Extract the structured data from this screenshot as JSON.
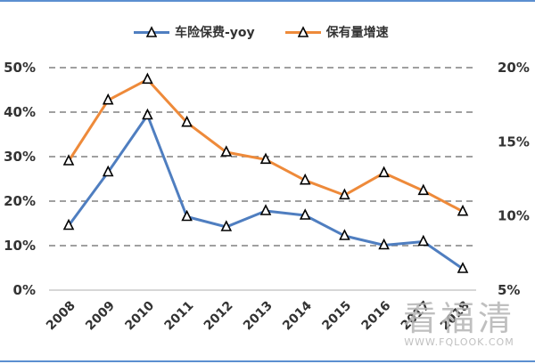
{
  "chart_data": {
    "type": "line",
    "categories": [
      "2008",
      "2009",
      "2010",
      "2011",
      "2012",
      "2013",
      "2014",
      "2015",
      "2016",
      "2017",
      "2018"
    ],
    "series": [
      {
        "name": "车险保费-yoy",
        "axis": "left",
        "color": "#4f7ec0",
        "marker": "triangle",
        "values": [
          14.5,
          26.5,
          39.3,
          16.5,
          14.2,
          17.8,
          16.8,
          12.2,
          10.1,
          10.9,
          4.8
        ]
      },
      {
        "name": "保有量增速",
        "axis": "right",
        "color": "#ee8a3a",
        "marker": "triangle",
        "values": [
          13.7,
          17.8,
          19.2,
          16.3,
          14.3,
          13.8,
          12.4,
          11.4,
          12.9,
          11.7,
          10.3
        ]
      }
    ],
    "left_axis": {
      "ylim": [
        0,
        50
      ],
      "ticks": [
        "0%",
        "10%",
        "20%",
        "30%",
        "40%",
        "50%"
      ]
    },
    "right_axis": {
      "ylim": [
        5,
        20
      ],
      "ticks": [
        "5%",
        "10%",
        "15%",
        "20%"
      ]
    },
    "grid": "dashed horizontal",
    "legend_position": "top-center"
  },
  "watermark": {
    "text": "看福清",
    "url": "WWW.FQLOOK.COM"
  }
}
